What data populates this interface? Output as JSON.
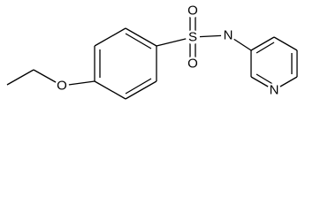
{
  "atoms": [
    {
      "label": "O"
    },
    {
      "label": "S"
    },
    {
      "label": "O"
    },
    {
      "label": "O"
    },
    {
      "label": "N"
    },
    {
      "label": "N"
    }
  ]
}
